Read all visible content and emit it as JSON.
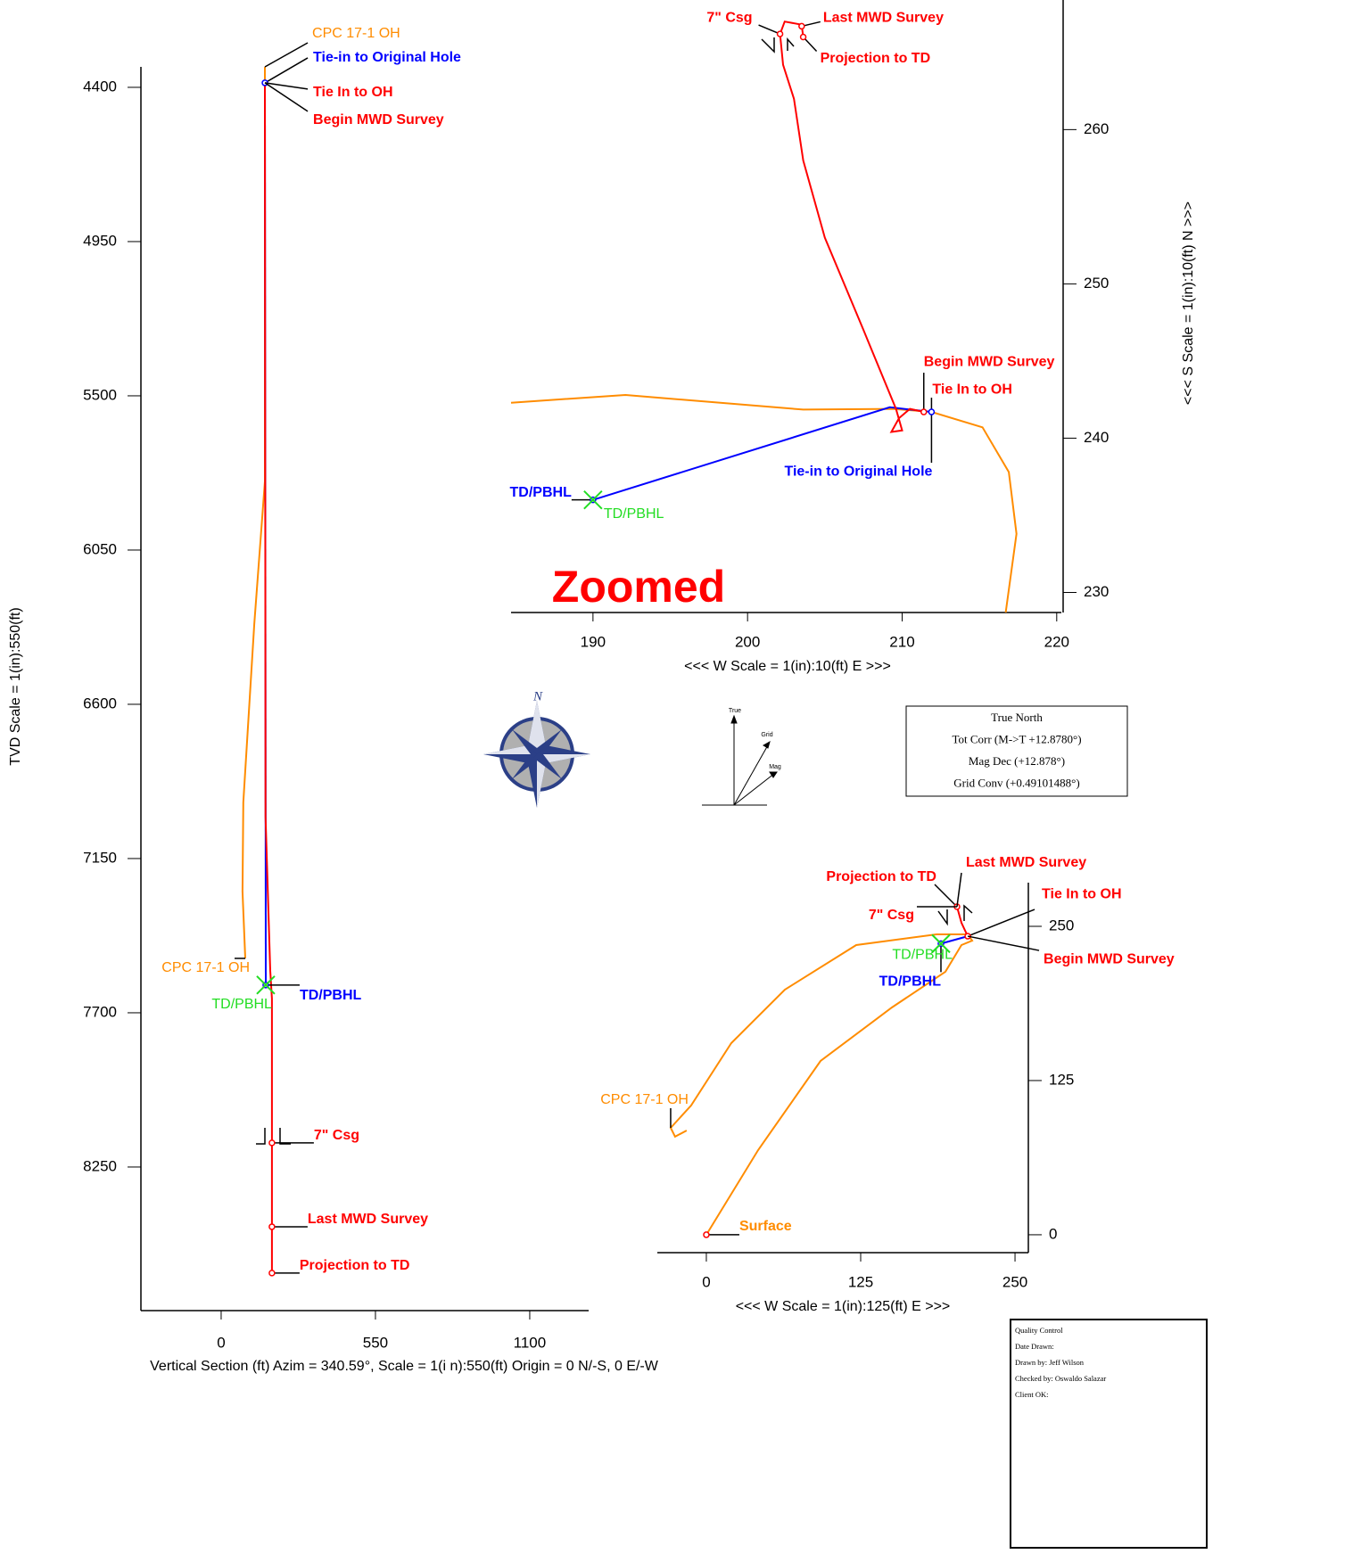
{
  "chart_data": [
    {
      "type": "line",
      "x_label": "Vertical Section (ft) Azim = 340.59°, Scale = 1(i n):550(ft)  Origin = 0 N/-S, 0 E/-W",
      "y_label": "TVD Scale = 1(in):550(ft)",
      "xlim": [
        -286,
        1310
      ],
      "ylim": [
        4327,
        8762
      ],
      "y_inverted": true,
      "xticks": [
        0,
        550,
        1100
      ],
      "yticks": [
        4400,
        4950,
        5500,
        6050,
        6600,
        7150,
        7700,
        8250
      ],
      "series": [
        {
          "name": "CPC 17-1 OH",
          "color": "#ff8c00",
          "x": [
            156,
            156,
            156,
            118,
            79,
            76,
            86
          ],
          "values": [
            4327,
            5042,
            5805,
            6314,
            6950,
            7268,
            7506
          ]
        },
        {
          "name": "Tie-in to Original Hole",
          "color": "#0000ff",
          "x": [
            156,
            159
          ],
          "values": [
            4384,
            7601
          ]
        },
        {
          "name": "Projection to TD",
          "color": "#ff0000",
          "x": [
            156,
            158,
            175,
            181,
            181,
            181
          ],
          "values": [
            4384,
            7000,
            7550,
            7650,
            8164,
            8628
          ]
        }
      ],
      "annotations": [
        {
          "text": "CPC 17-1 OH",
          "color": "#ff8c00",
          "x": 156,
          "y": 4327
        },
        {
          "text": "Tie-in to Original Hole",
          "color": "#0000ff",
          "bold": true,
          "x": 156,
          "y": 4384,
          "marker": "circle",
          "marker_color": "#0000ff"
        },
        {
          "text": "Tie In to OH",
          "color": "#ff0000",
          "bold": true,
          "x": 156,
          "y": 4384
        },
        {
          "text": "Begin MWD Survey",
          "color": "#ff0000",
          "bold": true,
          "x": 156,
          "y": 4384
        },
        {
          "text": "CPC 17-1 OH",
          "color": "#ff8c00",
          "x": 86,
          "y": 7506
        },
        {
          "text": "TD/PBHL",
          "color": "#0000ff",
          "bold": true,
          "x": 159,
          "y": 7601,
          "marker": "circle",
          "marker_color": "#0000ff"
        },
        {
          "text": "TD/PBHL",
          "color": "#22dd22",
          "x": 159,
          "y": 7601,
          "marker": "x",
          "marker_color": "#22dd22"
        },
        {
          "text": "7\" Csg",
          "color": "#ff0000",
          "bold": true,
          "x": 181,
          "y": 8164,
          "marker": "circle",
          "marker_color": "#ff0000"
        },
        {
          "text": "Last MWD Survey",
          "color": "#ff0000",
          "bold": true,
          "x": 181,
          "y": 8463,
          "marker": "circle",
          "marker_color": "#ff0000"
        },
        {
          "text": "Projection to TD",
          "color": "#ff0000",
          "bold": true,
          "x": 181,
          "y": 8628,
          "marker": "circle",
          "marker_color": "#ff0000"
        }
      ]
    },
    {
      "type": "line",
      "title": "Zoomed",
      "x_label": "<<<  W   Scale = 1(in):10(ft)   E  >>>",
      "y_label": "<<<  S    Scale = 1(in):10(ft)   N  >>>",
      "xlim": [
        184.7,
        220.3
      ],
      "ylim": [
        228.7,
        268.4
      ],
      "xticks": [
        190,
        200,
        210,
        220
      ],
      "yticks": [
        230,
        240,
        250,
        260
      ],
      "series": [
        {
          "name": "CPC 17-1 OH",
          "color": "#ff8c00",
          "x": [
            184.7,
            192.1,
            203.6,
            209.4,
            211.9,
            215.2,
            216.9,
            217.4,
            216.7
          ],
          "values": [
            242.3,
            242.8,
            241.85,
            241.9,
            241.7,
            240.7,
            237.8,
            233.8,
            228.7
          ]
        },
        {
          "name": "Tie-in to Original Hole",
          "color": "#0000ff",
          "x": [
            211.9,
            209.2,
            190
          ],
          "values": [
            241.7,
            242.0,
            236.0
          ]
        },
        {
          "name": "Projection to TD",
          "color": "#ff0000",
          "x": [
            211.4,
            210.5,
            209.8,
            209.3,
            210.0,
            209.6,
            207.5,
            205.0,
            203.6,
            203.0,
            202.3,
            202.1,
            202.4,
            203.5,
            203.6
          ],
          "values": [
            241.7,
            241.9,
            241.3,
            240.4,
            240.5,
            241.9,
            247,
            253,
            258,
            262,
            264.2,
            266.2,
            267.0,
            266.8,
            266.0
          ]
        }
      ],
      "annotations": [
        {
          "text": "7\" Csg",
          "color": "#ff0000",
          "bold": true,
          "x": 202.1,
          "y": 266.2,
          "marker": "circle",
          "marker_color": "#ff0000"
        },
        {
          "text": "Last MWD Survey",
          "color": "#ff0000",
          "bold": true,
          "x": 203.5,
          "y": 266.7,
          "marker": "circle",
          "marker_color": "#ff0000"
        },
        {
          "text": "Projection to TD",
          "color": "#ff0000",
          "bold": true,
          "x": 203.6,
          "y": 266.0,
          "marker": "circle",
          "marker_color": "#ff0000"
        },
        {
          "text": "Begin MWD Survey",
          "color": "#ff0000",
          "bold": true,
          "x": 211.4,
          "y": 241.7,
          "marker": "circle",
          "marker_color": "#ff0000"
        },
        {
          "text": "Tie In to OH",
          "color": "#ff0000",
          "bold": true,
          "x": 211.9,
          "y": 241.7
        },
        {
          "text": "Tie-in to Original Hole",
          "color": "#0000ff",
          "bold": true,
          "x": 211.9,
          "y": 241.7,
          "marker": "circle",
          "marker_color": "#0000ff"
        },
        {
          "text": "TD/PBHL",
          "color": "#0000ff",
          "bold": true,
          "x": 190,
          "y": 236.0,
          "marker": "circle",
          "marker_color": "#0000ff"
        },
        {
          "text": "TD/PBHL",
          "color": "#22dd22",
          "x": 190,
          "y": 236.0,
          "marker": "x",
          "marker_color": "#22dd22"
        }
      ]
    },
    {
      "type": "line",
      "x_label": "<<<  W    Scale = 1(in):125(ft)    E  >>>",
      "xlim": [
        -39.7,
        260.8
      ],
      "ylim": [
        -14.5,
        285.4
      ],
      "xticks": [
        0,
        125,
        250
      ],
      "yticks": [
        0,
        125,
        250
      ],
      "series": [
        {
          "name": "CPC 17-1 OH",
          "color": "#ff8c00",
          "x": [
            0,
            41.9,
            92.5,
            150.3,
            193.6,
            206.6,
            215.3,
            211.7,
            186.4,
            121.4,
            63.6,
            20.2,
            -12.3,
            -28.9,
            -25.3,
            -15.9
          ],
          "values": [
            0,
            68.6,
            140.9,
            184.2,
            213.2,
            234.8,
            238.4,
            243.5,
            243.5,
            234.8,
            198.7,
            155.3,
            104.8,
            86.7,
            79.5,
            84.5
          ]
        },
        {
          "name": "Tie-in to Original Hole",
          "color": "#0000ff",
          "x": [
            211.7,
            190
          ],
          "values": [
            242,
            236
          ]
        },
        {
          "name": "Projection to TD",
          "color": "#ff0000",
          "x": [
            211.7,
            206.6,
            203
          ],
          "values": [
            242,
            252.9,
            265.9
          ]
        }
      ],
      "annotations": [
        {
          "text": "Projection to TD",
          "color": "#ff0000",
          "bold": true,
          "x": 203,
          "y": 265.9,
          "marker": "circle",
          "marker_color": "#ff0000"
        },
        {
          "text": "Last MWD Survey",
          "color": "#ff0000",
          "bold": true,
          "x": 203,
          "y": 265.9
        },
        {
          "text": "7\" Csg",
          "color": "#ff0000",
          "bold": true,
          "x": 203,
          "y": 265.9
        },
        {
          "text": "Tie In to OH",
          "color": "#ff0000",
          "bold": true,
          "x": 211.7,
          "y": 242,
          "marker": "circle",
          "marker_color": "#ff0000"
        },
        {
          "text": "Begin MWD Survey",
          "color": "#ff0000",
          "bold": true,
          "x": 211.7,
          "y": 242
        },
        {
          "text": "TD/PBHL",
          "color": "#0000ff",
          "bold": true,
          "x": 190,
          "y": 236,
          "marker": "circle",
          "marker_color": "#0000ff"
        },
        {
          "text": "TD/PBHL",
          "color": "#22dd22",
          "x": 190,
          "y": 236,
          "marker": "x",
          "marker_color": "#22dd22"
        },
        {
          "text": "CPC 17-1 OH",
          "color": "#ff8c00",
          "x": -28.9,
          "y": 86.7
        },
        {
          "text": "Surface",
          "color": "#ff8c00",
          "bold": true,
          "x": 0,
          "y": 0,
          "marker": "circle",
          "marker_color": "#ff0000"
        }
      ]
    }
  ],
  "compass": {
    "label": "N"
  },
  "north_arrows": {
    "labels": [
      "True",
      "Grid",
      "Mag"
    ]
  },
  "north_box": {
    "lines": [
      "True North",
      "Tot Corr (M->T +12.8780°)",
      "Mag Dec (+12.878°)",
      "Grid Conv (+0.49101488°)"
    ]
  },
  "quality_control": {
    "lines": [
      "Quality Control",
      "Date Drawn:",
      "Drawn by: Jeff Wilson",
      "Checked by: Oswaldo Salazar",
      "Client OK:"
    ]
  }
}
